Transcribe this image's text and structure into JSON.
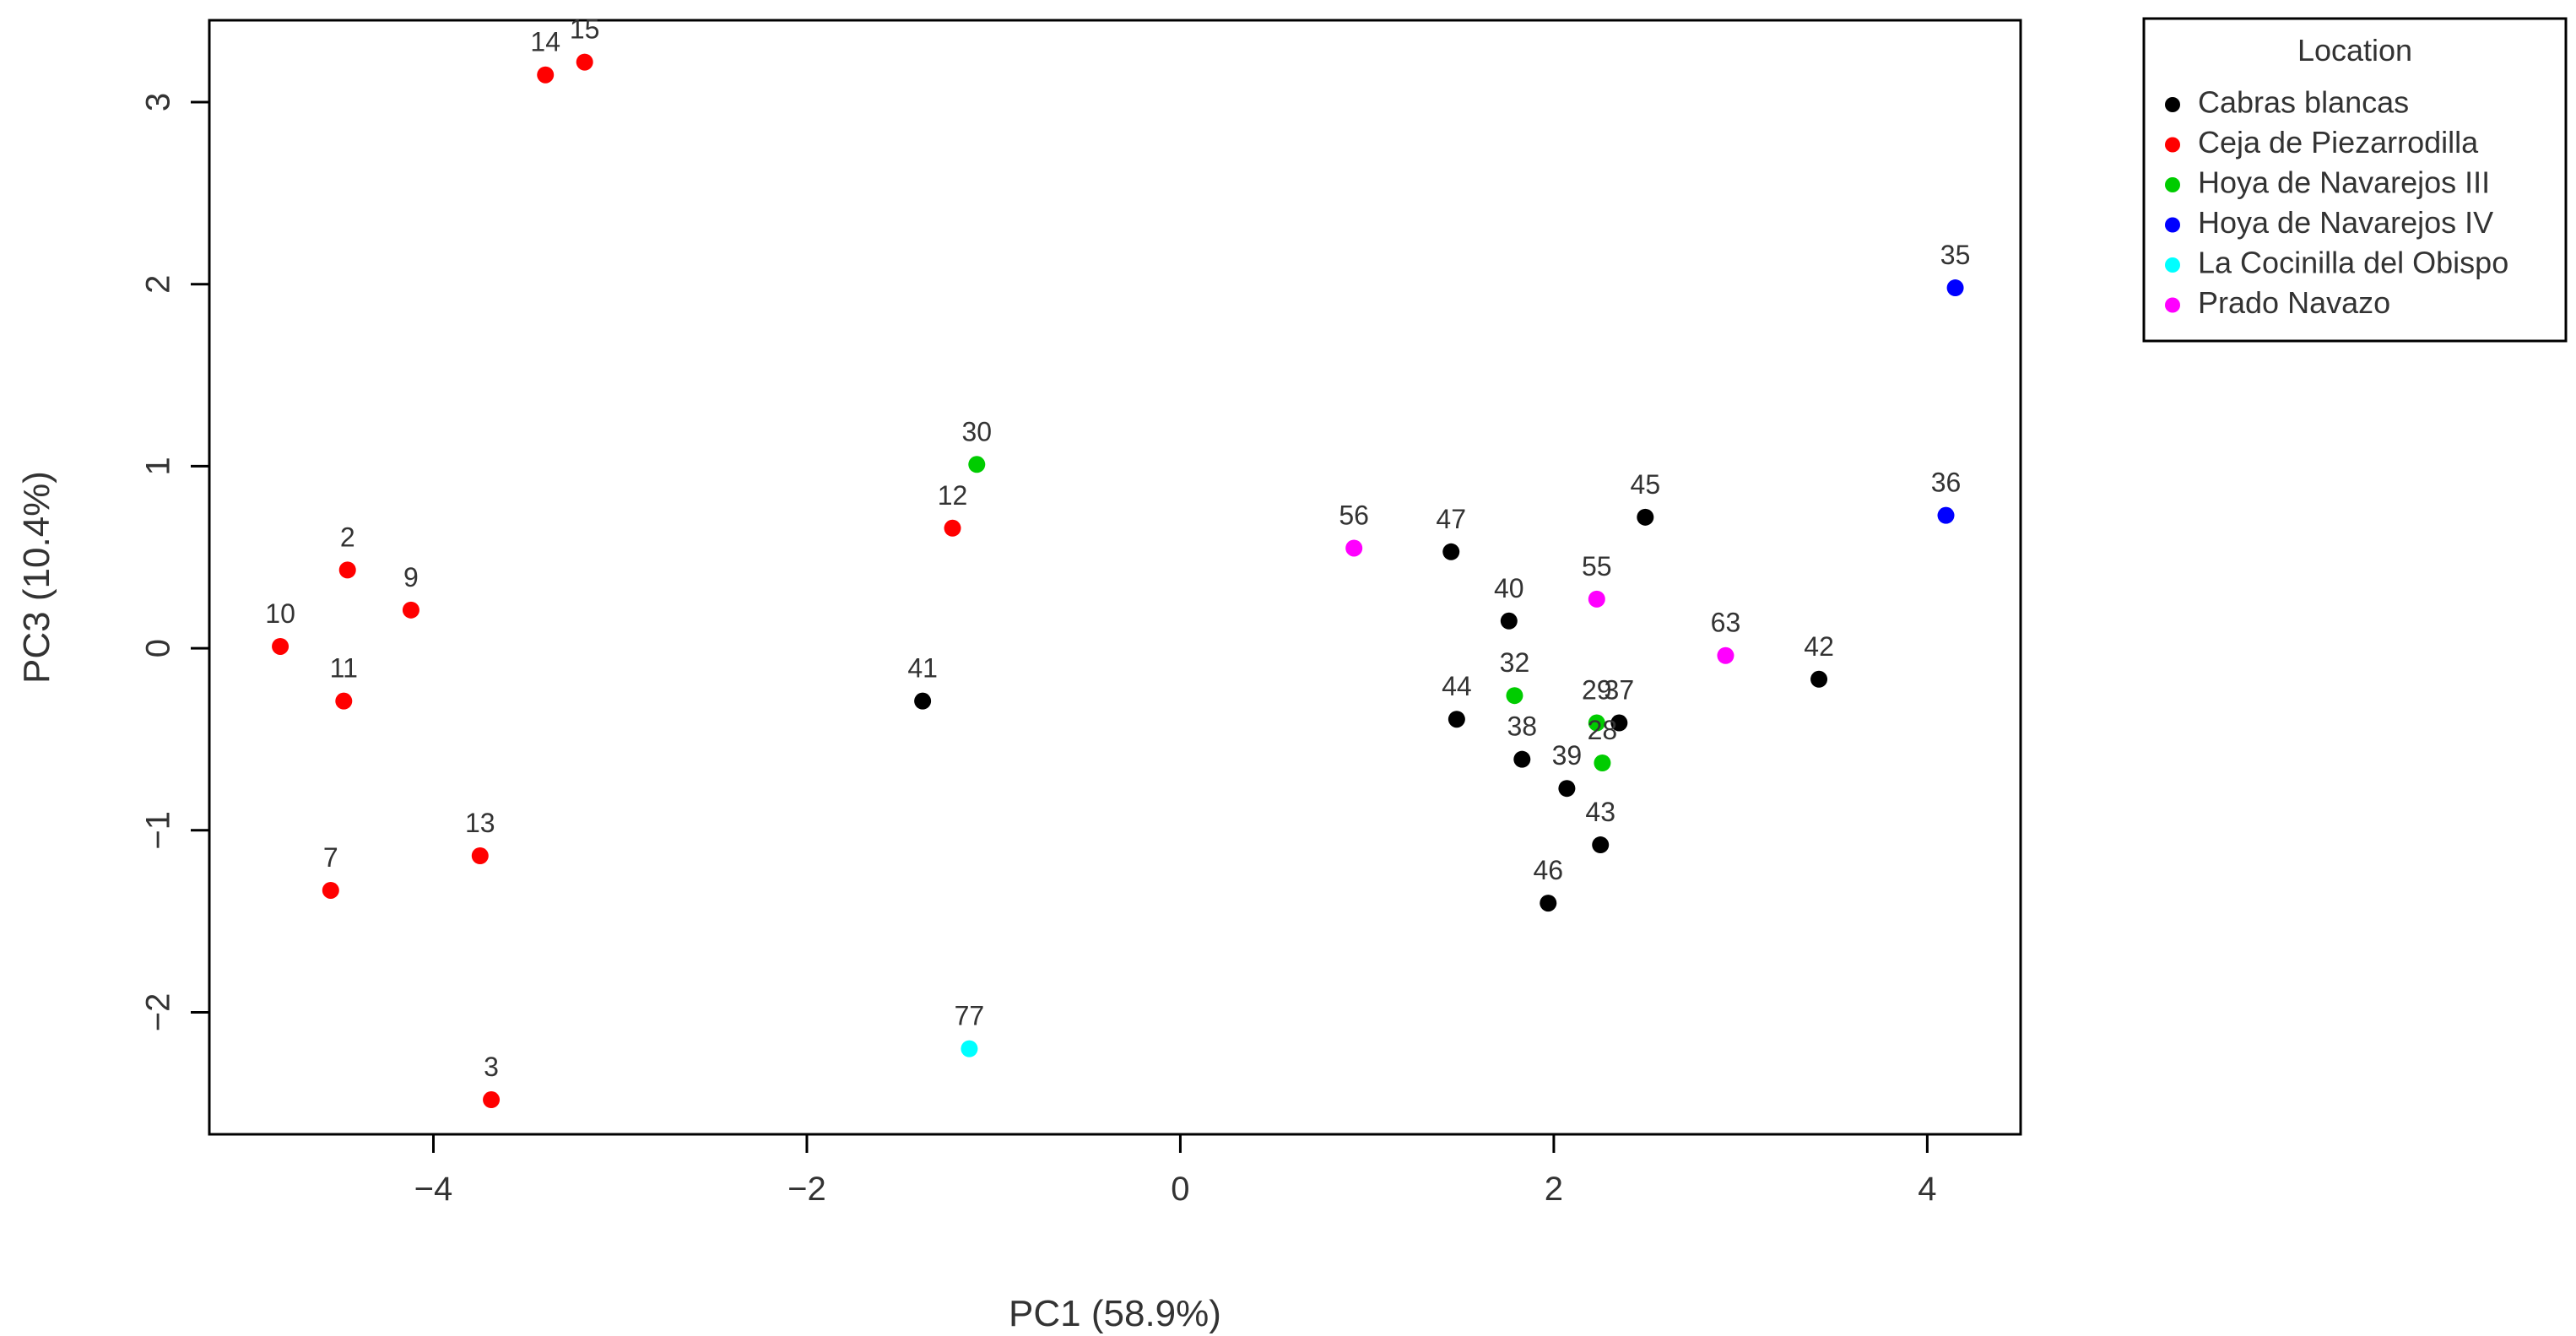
{
  "chart_data": {
    "type": "scatter",
    "xlabel": "PC1 (58.9%)",
    "ylabel": "PC3 (10.4%)",
    "xlim": [
      -5.2,
      4.5
    ],
    "ylim": [
      -2.67,
      3.45
    ],
    "xticks": [
      -4,
      -2,
      0,
      2,
      4
    ],
    "yticks": [
      -2,
      -1,
      0,
      1,
      2,
      3
    ],
    "grid": false,
    "legend": {
      "title": "Location",
      "position": "top-right, outside plot"
    },
    "series": [
      {
        "name": "Cabras blancas",
        "color": "#000000",
        "points": [
          {
            "label": "41",
            "x": -1.38,
            "y": -0.29
          },
          {
            "label": "47",
            "x": 1.45,
            "y": 0.53
          },
          {
            "label": "40",
            "x": 1.76,
            "y": 0.15
          },
          {
            "label": "45",
            "x": 2.49,
            "y": 0.72
          },
          {
            "label": "44",
            "x": 1.48,
            "y": -0.39
          },
          {
            "label": "38",
            "x": 1.83,
            "y": -0.61
          },
          {
            "label": "39",
            "x": 2.07,
            "y": -0.77
          },
          {
            "label": "37",
            "x": 2.35,
            "y": -0.41
          },
          {
            "label": "43",
            "x": 2.25,
            "y": -1.08
          },
          {
            "label": "46",
            "x": 1.97,
            "y": -1.4
          },
          {
            "label": "42",
            "x": 3.42,
            "y": -0.17
          }
        ]
      },
      {
        "name": "Ceja de Piezarrodilla",
        "color": "#ff0000",
        "points": [
          {
            "label": "14",
            "x": -3.4,
            "y": 3.15
          },
          {
            "label": "15",
            "x": -3.19,
            "y": 3.22
          },
          {
            "label": "2",
            "x": -4.46,
            "y": 0.43
          },
          {
            "label": "9",
            "x": -4.12,
            "y": 0.21
          },
          {
            "label": "10",
            "x": -4.82,
            "y": 0.01
          },
          {
            "label": "11",
            "x": -4.48,
            "y": -0.29
          },
          {
            "label": "13",
            "x": -3.75,
            "y": -1.14
          },
          {
            "label": "7",
            "x": -4.55,
            "y": -1.33
          },
          {
            "label": "3",
            "x": -3.69,
            "y": -2.48
          },
          {
            "label": "12",
            "x": -1.22,
            "y": 0.66
          }
        ]
      },
      {
        "name": "Hoya de Navarejos III",
        "color": "#00cc00",
        "points": [
          {
            "label": "30",
            "x": -1.09,
            "y": 1.01
          },
          {
            "label": "32",
            "x": 1.79,
            "y": -0.26
          },
          {
            "label": "29",
            "x": 2.23,
            "y": -0.41
          },
          {
            "label": "28",
            "x": 2.26,
            "y": -0.63
          }
        ]
      },
      {
        "name": "Hoya de Navarejos IV",
        "color": "#0000ff",
        "points": [
          {
            "label": "35",
            "x": 4.15,
            "y": 1.98
          },
          {
            "label": "36",
            "x": 4.1,
            "y": 0.73
          }
        ]
      },
      {
        "name": "La Cocinilla del Obispo",
        "color": "#00ffff",
        "points": [
          {
            "label": "77",
            "x": -1.13,
            "y": -2.2
          }
        ]
      },
      {
        "name": "Prado Navazo",
        "color": "#ff00ff",
        "points": [
          {
            "label": "56",
            "x": 0.93,
            "y": 0.55
          },
          {
            "label": "55",
            "x": 2.23,
            "y": 0.27
          },
          {
            "label": "63",
            "x": 2.92,
            "y": -0.04
          }
        ]
      }
    ]
  }
}
